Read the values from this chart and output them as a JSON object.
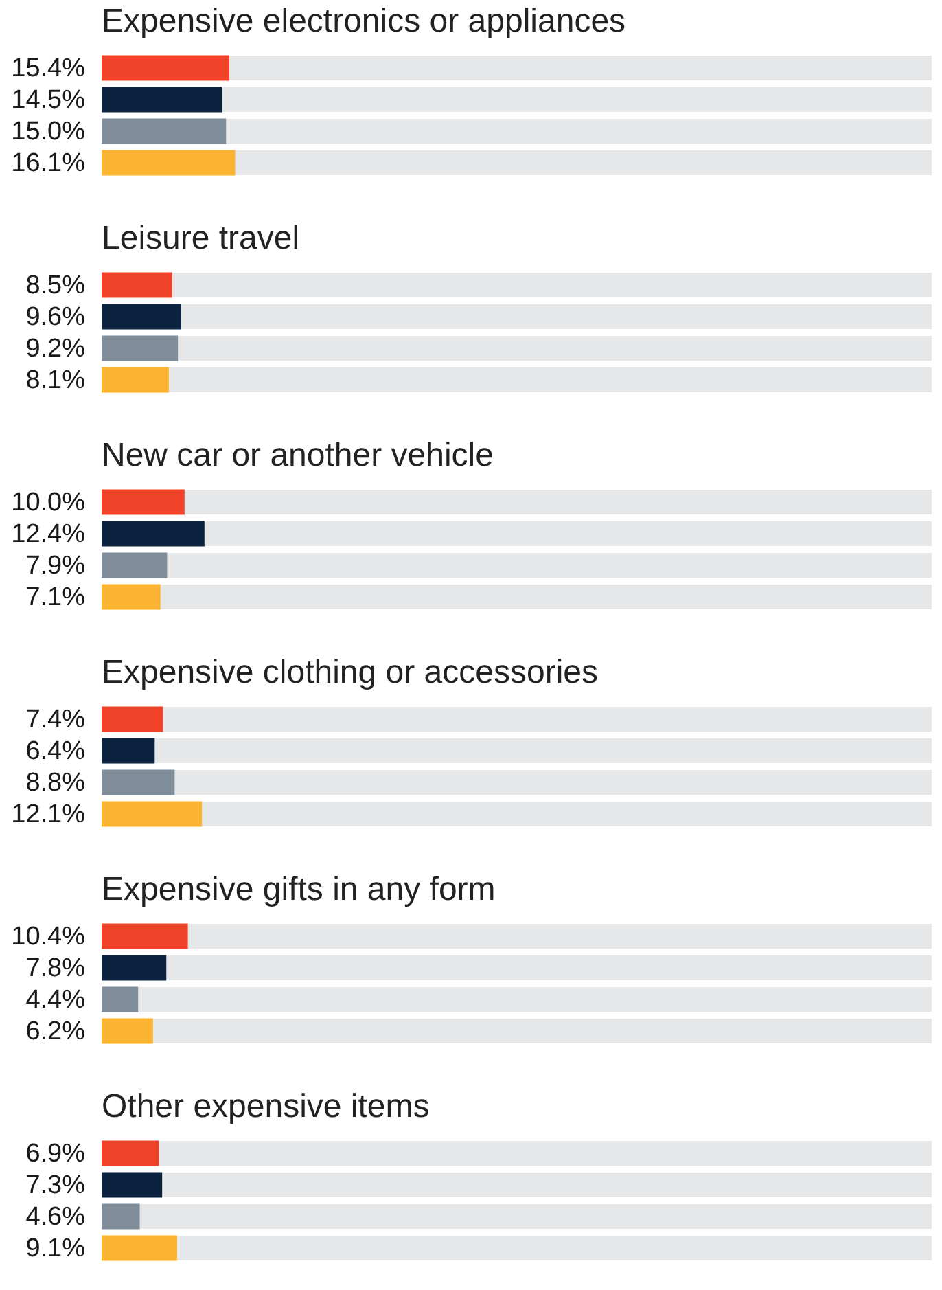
{
  "chart_data": [
    {
      "type": "bar",
      "orientation": "horizontal",
      "title": "Expensive electronics or appliances",
      "categories": [
        null,
        null,
        null,
        null
      ],
      "values": [
        15.4,
        14.5,
        15.0,
        16.1
      ],
      "value_labels": [
        "15.4%",
        "14.5%",
        "15.0%",
        "16.1%"
      ],
      "colors": [
        "#f0432a",
        "#0c2340",
        "#7f8e9a",
        "#fbb432"
      ],
      "xlim": [
        0,
        100
      ],
      "grid": "y"
    },
    {
      "type": "bar",
      "orientation": "horizontal",
      "title": "Leisure travel",
      "categories": [
        null,
        null,
        null,
        null
      ],
      "values": [
        8.5,
        9.6,
        9.2,
        8.1
      ],
      "value_labels": [
        "8.5%",
        "9.6%",
        "9.2%",
        "8.1%"
      ],
      "colors": [
        "#f0432a",
        "#0c2340",
        "#7f8e9a",
        "#fbb432"
      ],
      "xlim": [
        0,
        100
      ],
      "grid": "y"
    },
    {
      "type": "bar",
      "orientation": "horizontal",
      "title": "New car or another vehicle",
      "categories": [
        null,
        null,
        null,
        null
      ],
      "values": [
        10.0,
        12.4,
        7.9,
        7.1
      ],
      "value_labels": [
        "10.0%",
        "12.4%",
        "7.9%",
        "7.1%"
      ],
      "colors": [
        "#f0432a",
        "#0c2340",
        "#7f8e9a",
        "#fbb432"
      ],
      "xlim": [
        0,
        100
      ],
      "grid": "y"
    },
    {
      "type": "bar",
      "orientation": "horizontal",
      "title": "Expensive clothing or accessories",
      "categories": [
        null,
        null,
        null,
        null
      ],
      "values": [
        7.4,
        6.4,
        8.8,
        12.1
      ],
      "value_labels": [
        "7.4%",
        "6.4%",
        "8.8%",
        "12.1%"
      ],
      "colors": [
        "#f0432a",
        "#0c2340",
        "#7f8e9a",
        "#fbb432"
      ],
      "xlim": [
        0,
        100
      ],
      "grid": "y"
    },
    {
      "type": "bar",
      "orientation": "horizontal",
      "title": "Expensive gifts in any form",
      "categories": [
        null,
        null,
        null,
        null
      ],
      "values": [
        10.4,
        7.8,
        4.4,
        6.2
      ],
      "value_labels": [
        "10.4%",
        "7.8%",
        "4.4%",
        "6.2%"
      ],
      "colors": [
        "#f0432a",
        "#0c2340",
        "#7f8e9a",
        "#fbb432"
      ],
      "xlim": [
        0,
        100
      ],
      "grid": "y"
    },
    {
      "type": "bar",
      "orientation": "horizontal",
      "title": "Other expensive items",
      "categories": [
        null,
        null,
        null,
        null
      ],
      "values": [
        6.9,
        7.3,
        4.6,
        9.1
      ],
      "value_labels": [
        "6.9%",
        "7.3%",
        "4.6%",
        "9.1%"
      ],
      "colors": [
        "#f0432a",
        "#0c2340",
        "#7f8e9a",
        "#fbb432"
      ],
      "xlim": [
        0,
        100
      ],
      "grid": "y"
    }
  ]
}
